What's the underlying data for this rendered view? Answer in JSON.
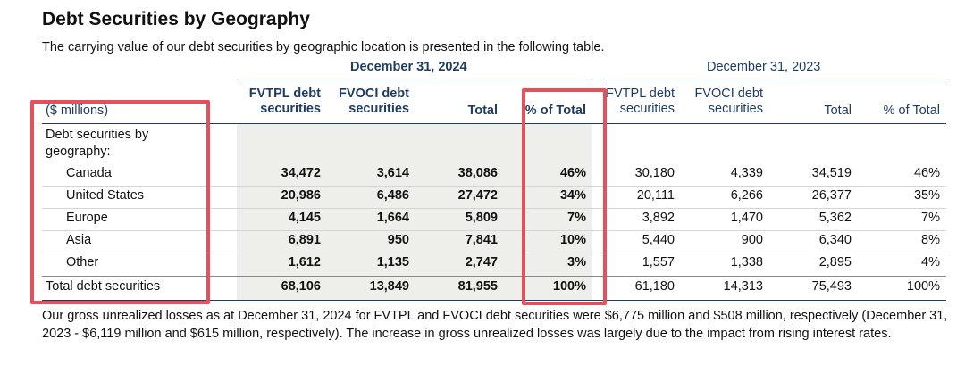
{
  "title": "Debt Securities by Geography",
  "intro": "The carrying value of our debt securities by geographic location is presented in the following table.",
  "periods": {
    "current": "December 31, 2024",
    "prior": "December 31, 2023"
  },
  "headers": {
    "unit_label": "($ millions)",
    "fvtpl_line1": "FVTPL debt",
    "fvtpl_line2": "securities",
    "fvoci_line1": "FVOCI debt",
    "fvoci_line2": "securities",
    "total": "Total",
    "pct": "% of Total",
    "prior_fvtpl_line1": "FVTPL debt",
    "prior_fvtpl_line2": "securities",
    "prior_fvoci_line1": "FVOCI debt",
    "prior_fvoci_line2": "securities",
    "prior_total": "Total",
    "prior_pct": "% of Total"
  },
  "group_label_line1": "Debt securities by",
  "group_label_line2": "geography:",
  "rows": [
    {
      "label": "Canada",
      "c": [
        "34,472",
        "3,614",
        "38,086",
        "46%"
      ],
      "p": [
        "30,180",
        "4,339",
        "34,519",
        "46%"
      ]
    },
    {
      "label": "United States",
      "c": [
        "20,986",
        "6,486",
        "27,472",
        "34%"
      ],
      "p": [
        "20,111",
        "6,266",
        "26,377",
        "35%"
      ]
    },
    {
      "label": "Europe",
      "c": [
        "4,145",
        "1,664",
        "5,809",
        "7%"
      ],
      "p": [
        "3,892",
        "1,470",
        "5,362",
        "7%"
      ]
    },
    {
      "label": "Asia",
      "c": [
        "6,891",
        "950",
        "7,841",
        "10%"
      ],
      "p": [
        "5,440",
        "900",
        "6,340",
        "8%"
      ]
    },
    {
      "label": "Other",
      "c": [
        "1,612",
        "1,135",
        "2,747",
        "3%"
      ],
      "p": [
        "1,557",
        "1,338",
        "2,895",
        "4%"
      ]
    }
  ],
  "total_row": {
    "label": "Total debt securities",
    "c": [
      "68,106",
      "13,849",
      "81,955",
      "100%"
    ],
    "p": [
      "61,180",
      "14,313",
      "75,493",
      "100%"
    ]
  },
  "footer": "Our gross unrealized losses as at December 31, 2024 for FVTPL and FVOCI debt securities were $6,775 million and $508 million, respectively (December 31, 2023 - $6,119 million and $615 million, respectively). The increase in gross unrealized losses was largely due to the impact from rising interest rates.",
  "colors": {
    "heading_blue": "#1f3d63",
    "shade": "#eeeeea",
    "highlight_red": "#e5505a"
  }
}
